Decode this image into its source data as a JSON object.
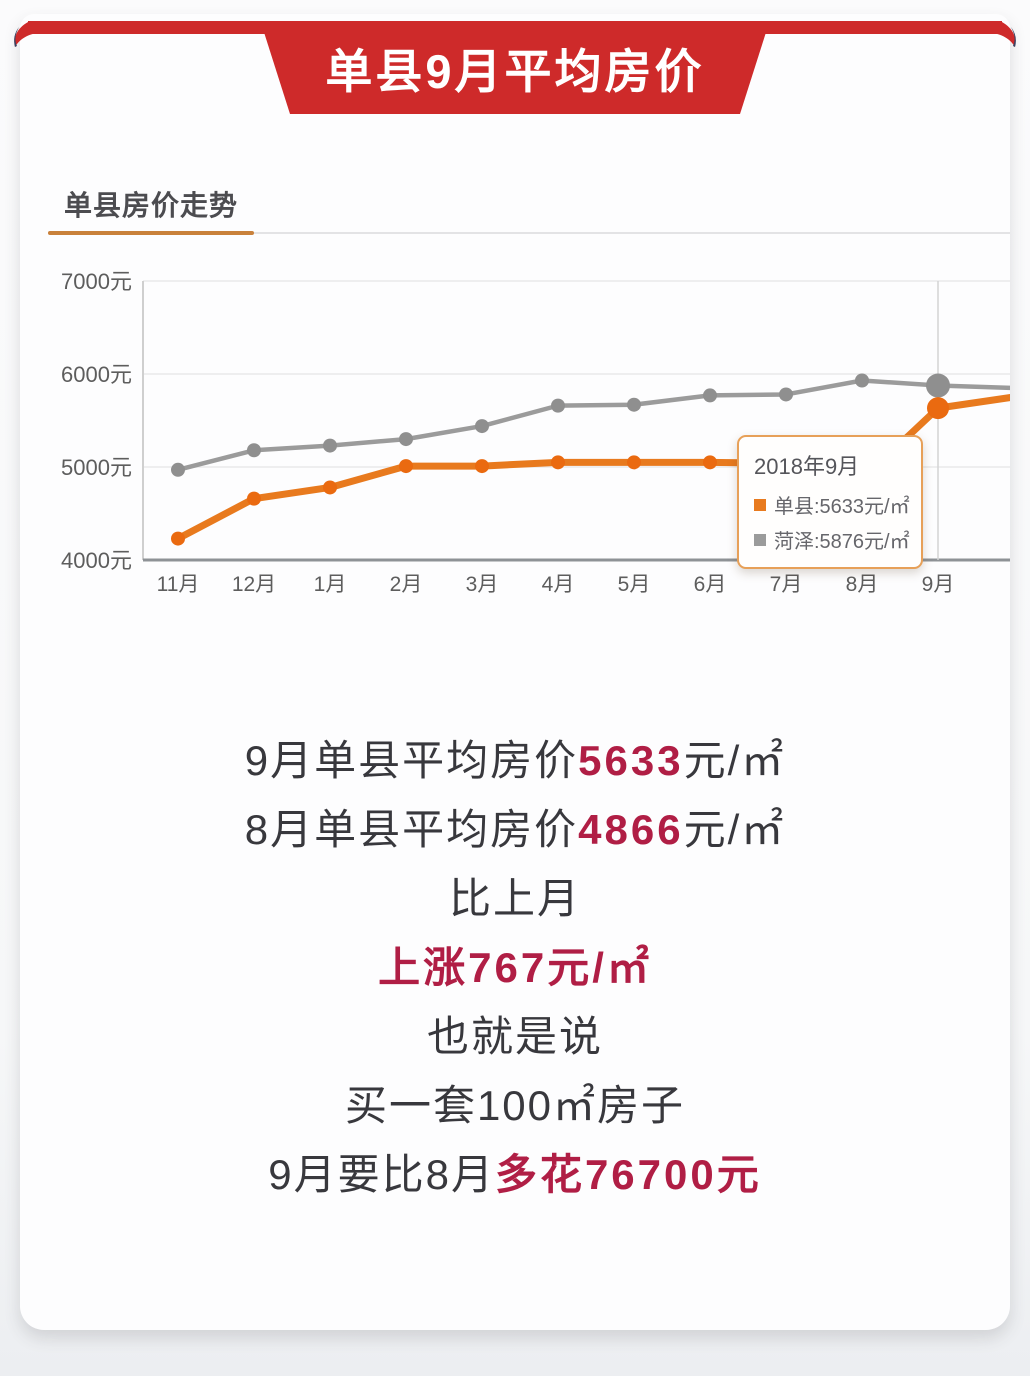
{
  "banner": {
    "title": "单县9月平均房价"
  },
  "section": {
    "title": "单县房价走势"
  },
  "colors": {
    "banner_red": "#ce2a2a",
    "accent_crimson": "#b01e45",
    "shan_orange": "#e87a1e",
    "heze_gray": "#9b9b9b"
  },
  "chart_data": {
    "type": "line",
    "title": "单县房价走势",
    "categories": [
      "11月",
      "12月",
      "1月",
      "2月",
      "3月",
      "4月",
      "5月",
      "6月",
      "7月",
      "8月",
      "9月"
    ],
    "ylabel": "元",
    "ylim": [
      4000,
      7000
    ],
    "ytick_step": 1000,
    "ytick_labels": [
      "4000元",
      "5000元",
      "6000元",
      "7000元"
    ],
    "grid": true,
    "series": [
      {
        "name": "菏泽",
        "color": "#9b9b9b",
        "dot_color": "#8f8f8f",
        "values": [
          4970,
          5180,
          5230,
          5300,
          5440,
          5660,
          5670,
          5770,
          5780,
          5930,
          5876
        ],
        "trail": 5850
      },
      {
        "name": "单县",
        "color": "#e87a1e",
        "dot_color": "#ea6a10",
        "values": [
          4230,
          4660,
          4780,
          5010,
          5010,
          5050,
          5050,
          5050,
          5040,
          4866,
          5633
        ],
        "trail": 5750
      }
    ],
    "highlight_index": 10,
    "tooltip": {
      "title": "2018年9月",
      "rows": [
        {
          "swatch_color": "#e87a1e",
          "text": "单县:5633元/㎡"
        },
        {
          "swatch_color": "#9b9b9b",
          "text": "菏泽:5876元/㎡"
        }
      ]
    }
  },
  "summary": {
    "lines": [
      {
        "parts": [
          {
            "t": "9月单县平均房价"
          },
          {
            "t": "5633",
            "em": true
          },
          {
            "t": "元/㎡"
          }
        ]
      },
      {
        "parts": [
          {
            "t": "8月单县平均房价"
          },
          {
            "t": "4866",
            "em": true
          },
          {
            "t": "元/㎡"
          }
        ]
      },
      {
        "parts": [
          {
            "t": "比上月"
          }
        ]
      },
      {
        "parts": [
          {
            "t": "上涨767元/㎡",
            "em": true
          }
        ]
      },
      {
        "parts": [
          {
            "t": "也就是说"
          }
        ]
      },
      {
        "parts": [
          {
            "t": "买一套100㎡房子"
          }
        ]
      },
      {
        "parts": [
          {
            "t": "9月要比8月"
          },
          {
            "t": "多花76700元",
            "em": true
          }
        ]
      }
    ]
  }
}
